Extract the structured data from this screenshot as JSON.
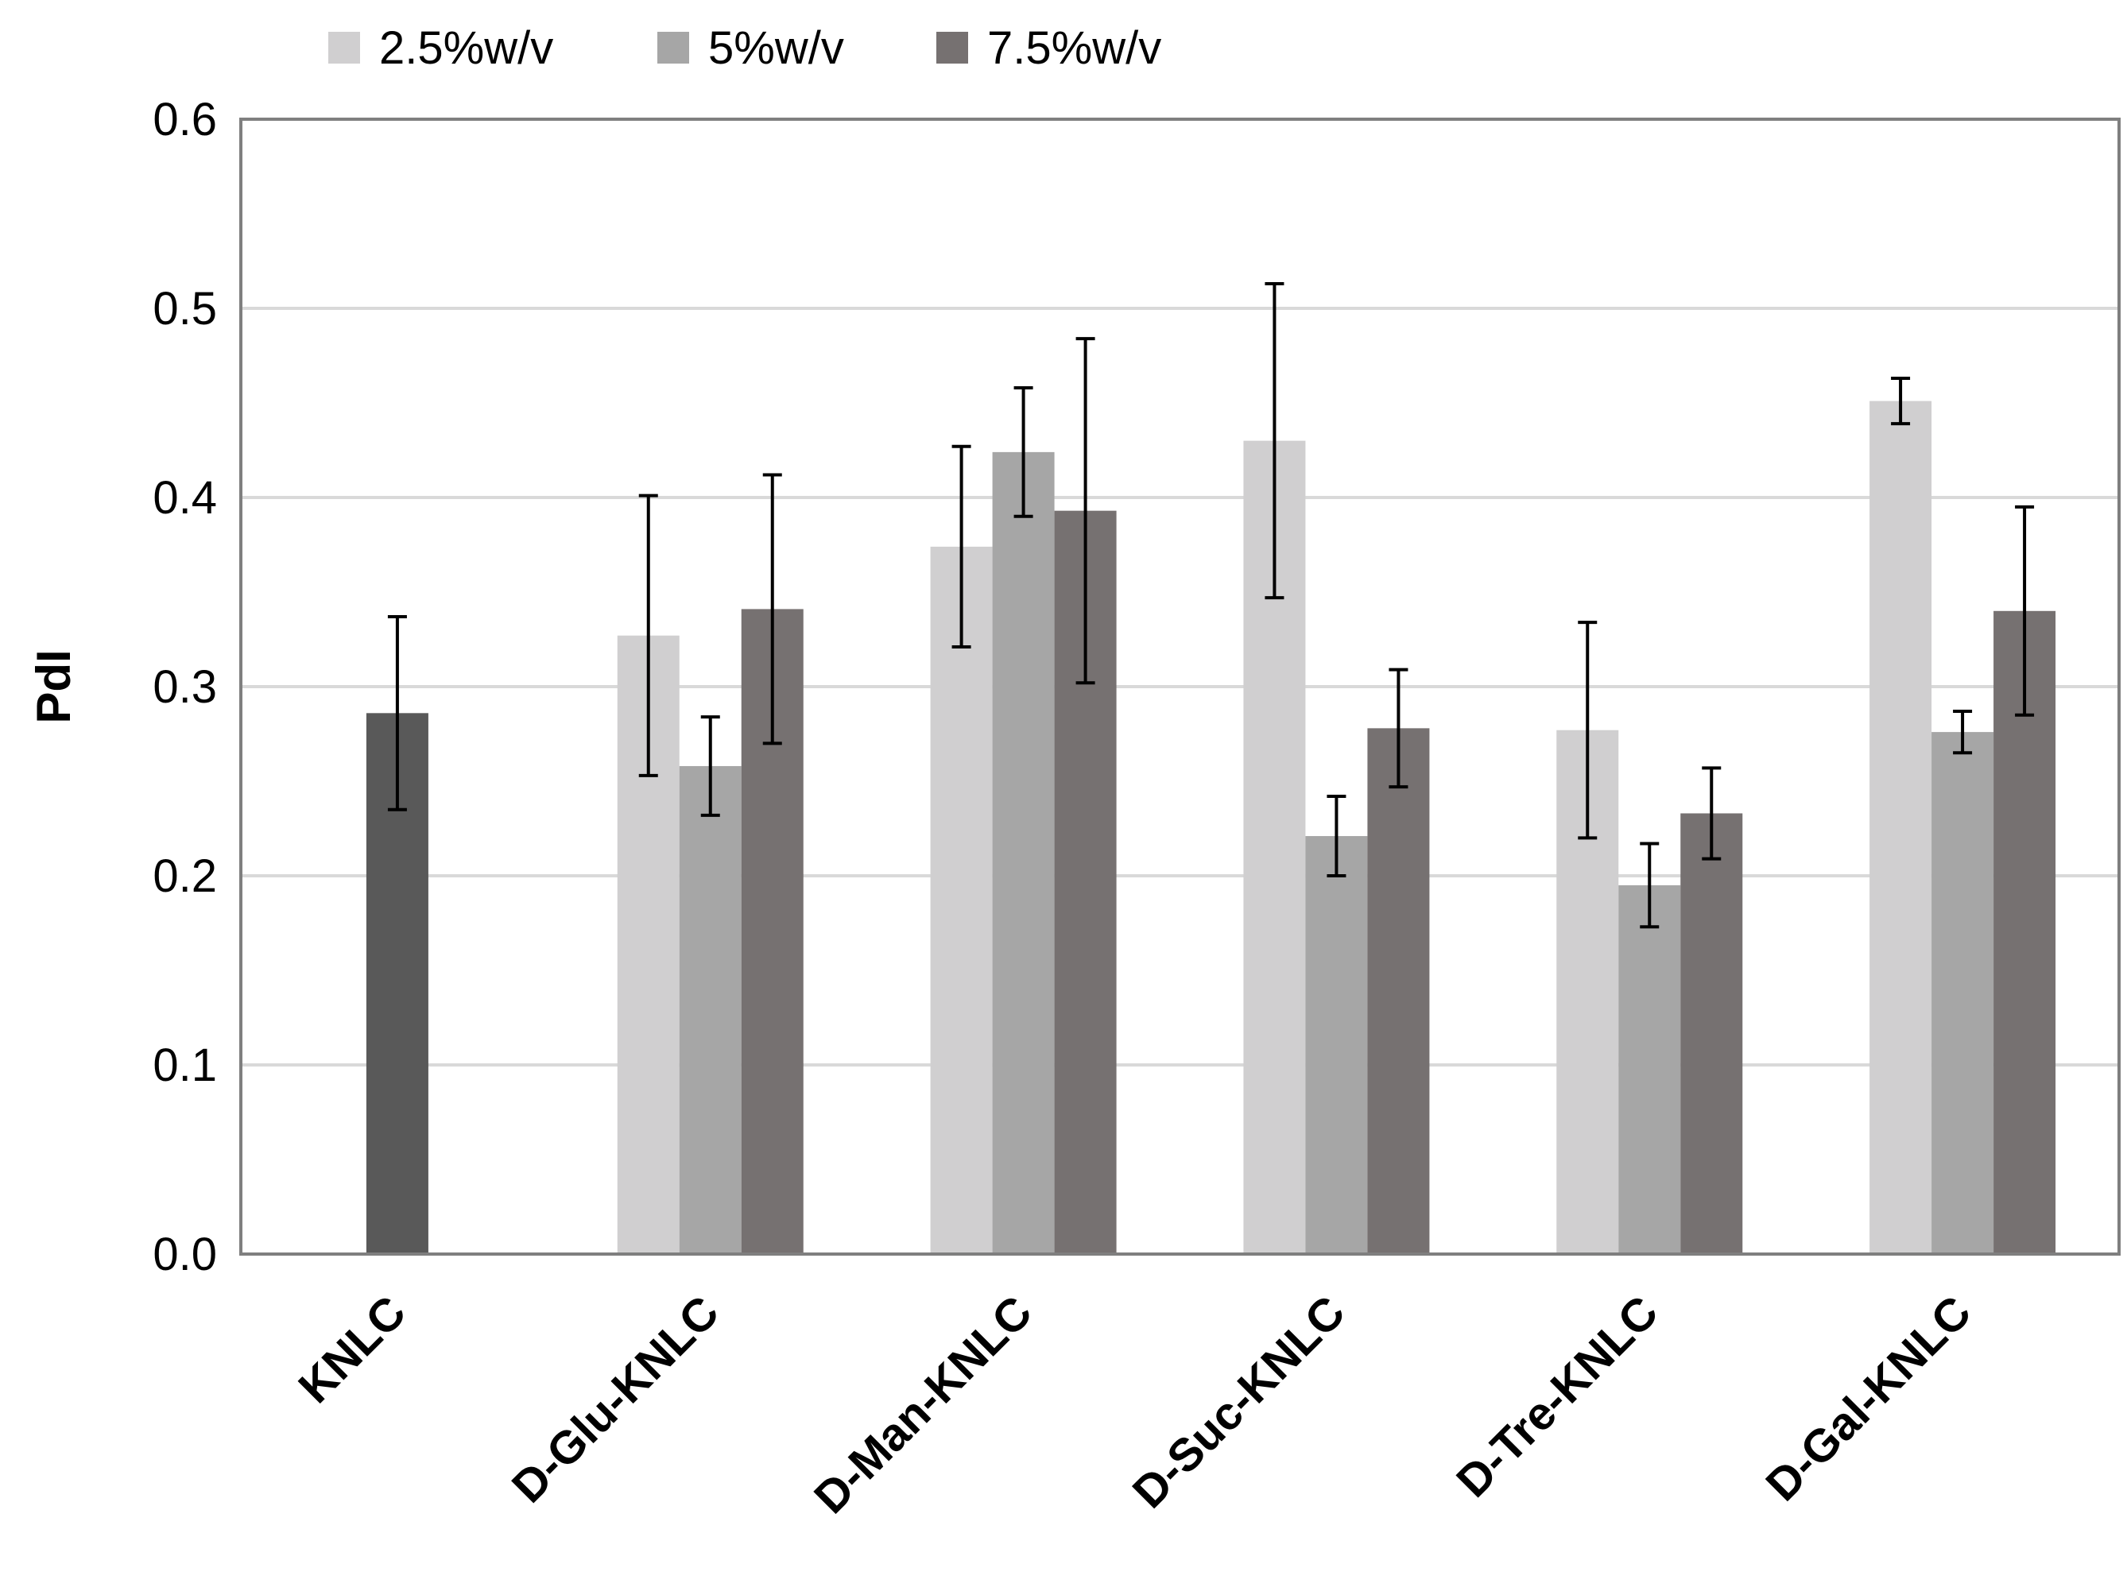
{
  "chart_data": {
    "type": "bar",
    "title": "",
    "xlabel": "",
    "ylabel": "PdI",
    "ylim": [
      0,
      0.6
    ],
    "yticks": [
      "0.0",
      "0.1",
      "0.2",
      "0.3",
      "0.4",
      "0.5",
      "0.6"
    ],
    "grid": true,
    "legend_position": "top",
    "categories": [
      "KNLC",
      "D-Glu-KNLC",
      "D-Man-KNLC",
      "D-Suc-KNLC",
      "D-Tre-KNLC",
      "D-Gal-KNLC"
    ],
    "control": {
      "category": "KNLC",
      "value": 0.286,
      "error": 0.051,
      "color": "#595959"
    },
    "series": [
      {
        "name": "2.5%w/v",
        "color": "#d0cfd0",
        "values": [
          null,
          0.327,
          0.374,
          0.43,
          0.277,
          0.451
        ],
        "errors": [
          null,
          0.074,
          0.053,
          0.083,
          0.057,
          0.012
        ]
      },
      {
        "name": "5%w/v",
        "color": "#a6a6a6",
        "values": [
          null,
          0.258,
          0.424,
          0.221,
          0.195,
          0.276
        ],
        "errors": [
          null,
          0.026,
          0.034,
          0.021,
          0.022,
          0.011
        ]
      },
      {
        "name": "7.5%w/v",
        "color": "#767171",
        "values": [
          null,
          0.341,
          0.393,
          0.278,
          0.233,
          0.34
        ],
        "errors": [
          null,
          0.071,
          0.091,
          0.031,
          0.024,
          0.055
        ]
      }
    ]
  }
}
